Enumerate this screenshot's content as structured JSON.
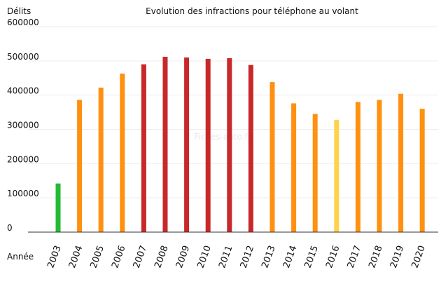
{
  "chart_data": {
    "type": "bar",
    "title": "Evolution des infractions pour téléphone au volant",
    "ylabel": "Délits",
    "xlabel": "Année",
    "watermark": "Fiches-auto.fr",
    "ylim": [
      0,
      600000
    ],
    "yticks": [
      "0",
      "100000",
      "200000",
      "300000",
      "400000",
      "500000",
      "600000"
    ],
    "grid": true,
    "categories": [
      "2003",
      "2004",
      "2005",
      "2006",
      "2007",
      "2008",
      "2009",
      "2010",
      "2011",
      "2012",
      "2013",
      "2014",
      "2015",
      "2016",
      "2017",
      "2018",
      "2019",
      "2020"
    ],
    "values": [
      142000,
      386000,
      422000,
      463000,
      490000,
      512000,
      510000,
      506000,
      508000,
      488000,
      438000,
      376000,
      345000,
      328000,
      380000,
      386000,
      404000,
      360000
    ],
    "colors": [
      "#22bb33",
      "#ff9010",
      "#ff9010",
      "#ff9010",
      "#c8282a",
      "#c8282a",
      "#c8282a",
      "#c8282a",
      "#c8282a",
      "#c8282a",
      "#ff9010",
      "#ff9010",
      "#ff9010",
      "#ffd24a",
      "#ff9010",
      "#ff9010",
      "#ff9010",
      "#ff9010"
    ]
  }
}
